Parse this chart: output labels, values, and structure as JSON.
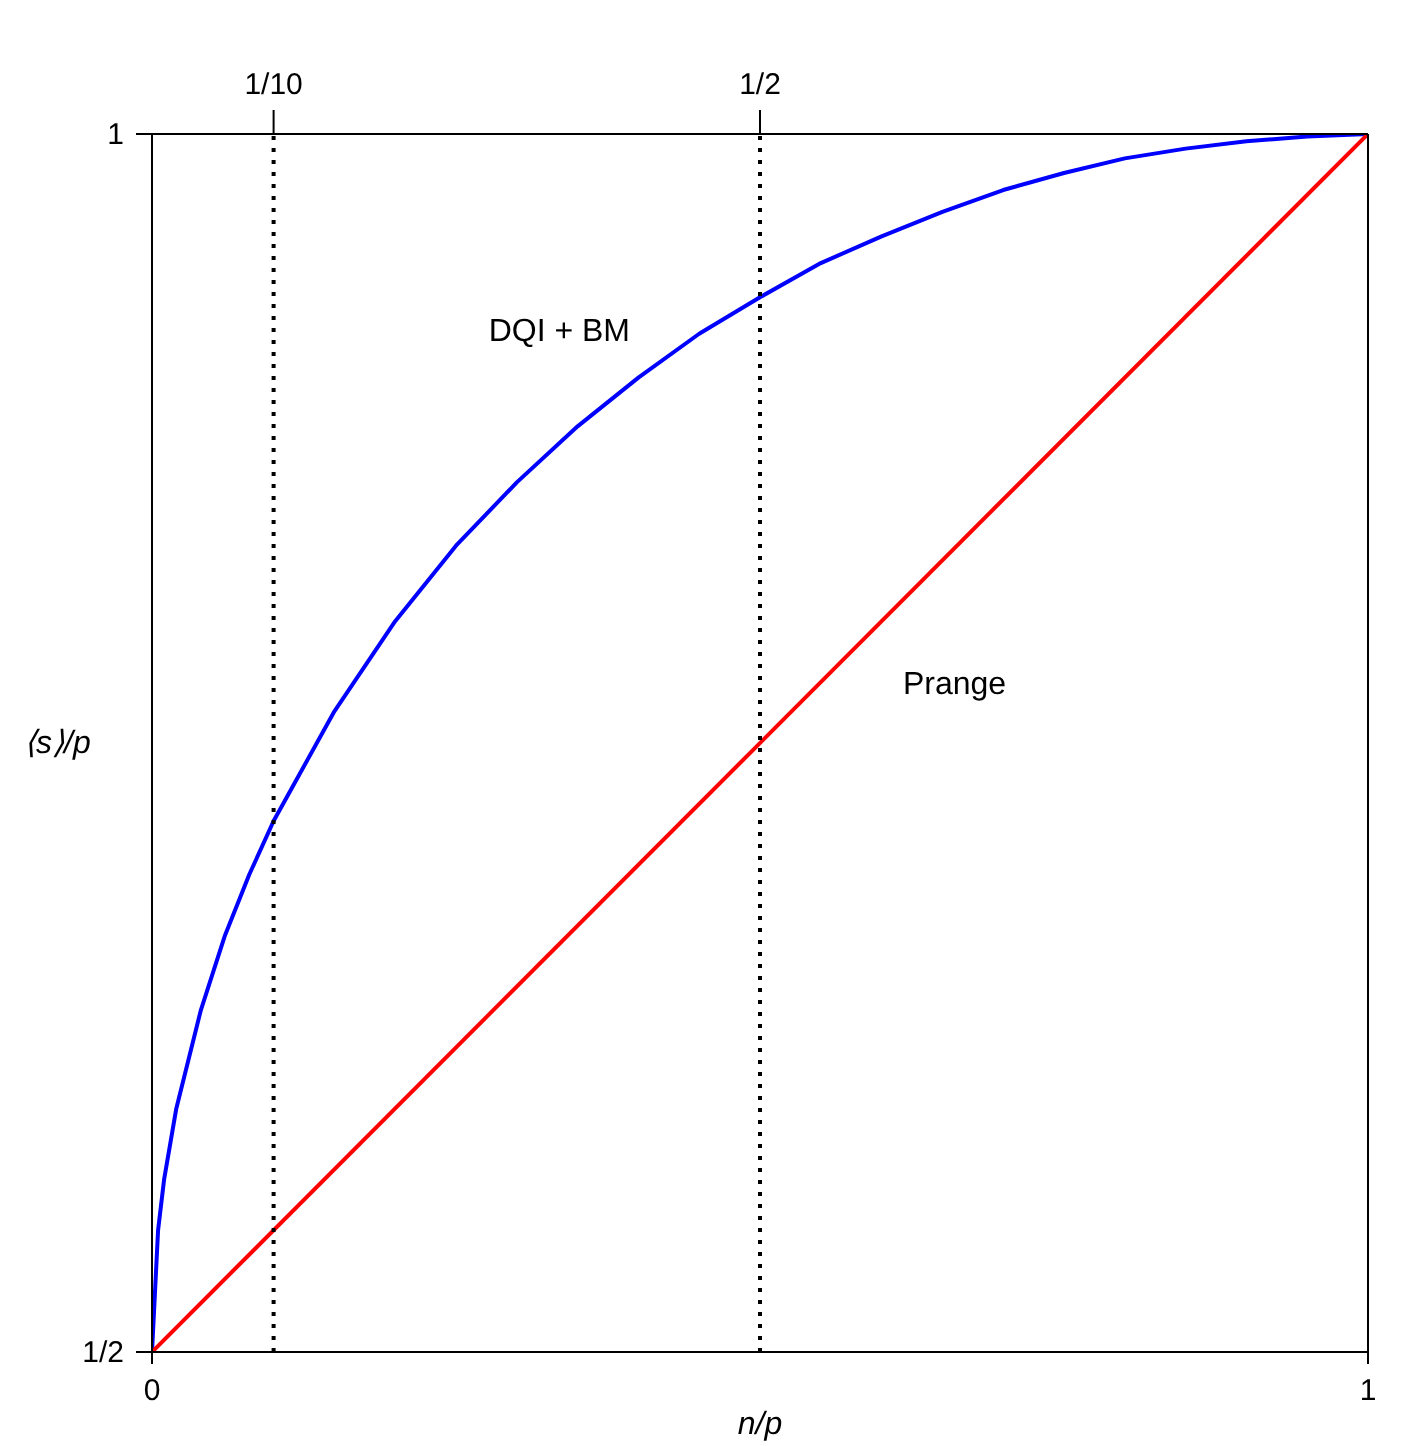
{
  "chart_data": {
    "type": "line",
    "xlabel": "n/p",
    "ylabel": "⟨s⟩/p",
    "series": [
      {
        "name": "DQI + BM",
        "color": "#0000ff",
        "x": [
          0,
          0.005,
          0.01,
          0.02,
          0.04,
          0.06,
          0.08,
          0.1,
          0.15,
          0.2,
          0.25,
          0.3,
          0.35,
          0.4,
          0.45,
          0.5,
          0.55,
          0.6,
          0.65,
          0.7,
          0.75,
          0.8,
          0.85,
          0.9,
          0.95,
          1
        ],
        "values": [
          0.5,
          0.55,
          0.571,
          0.6,
          0.64,
          0.671,
          0.696,
          0.718,
          0.763,
          0.8,
          0.831,
          0.857,
          0.88,
          0.9,
          0.918,
          0.933,
          0.947,
          0.958,
          0.968,
          0.977,
          0.984,
          0.99,
          0.994,
          0.997,
          0.999,
          1
        ]
      },
      {
        "name": "Prange",
        "color": "#ff0000",
        "x": [
          0,
          1
        ],
        "values": [
          0.5,
          1
        ]
      }
    ],
    "xlim": [
      0,
      1
    ],
    "xticks": [
      0,
      1
    ],
    "x2lim": [
      0,
      1
    ],
    "x2ticks": [
      {
        "value": 0.1,
        "label": "1/10"
      },
      {
        "value": 0.5,
        "label": "1/2"
      }
    ],
    "ylim": [
      0.5,
      1
    ],
    "yticks": [
      {
        "value": 0.5,
        "label": "1/2"
      },
      1
    ],
    "ref_lines": [
      {
        "axis": "x",
        "value": 0.1,
        "color": "#000000",
        "line_style": "dotted"
      },
      {
        "axis": "x",
        "value": 0.5,
        "color": "#000000",
        "line_style": "dotted"
      }
    ]
  }
}
